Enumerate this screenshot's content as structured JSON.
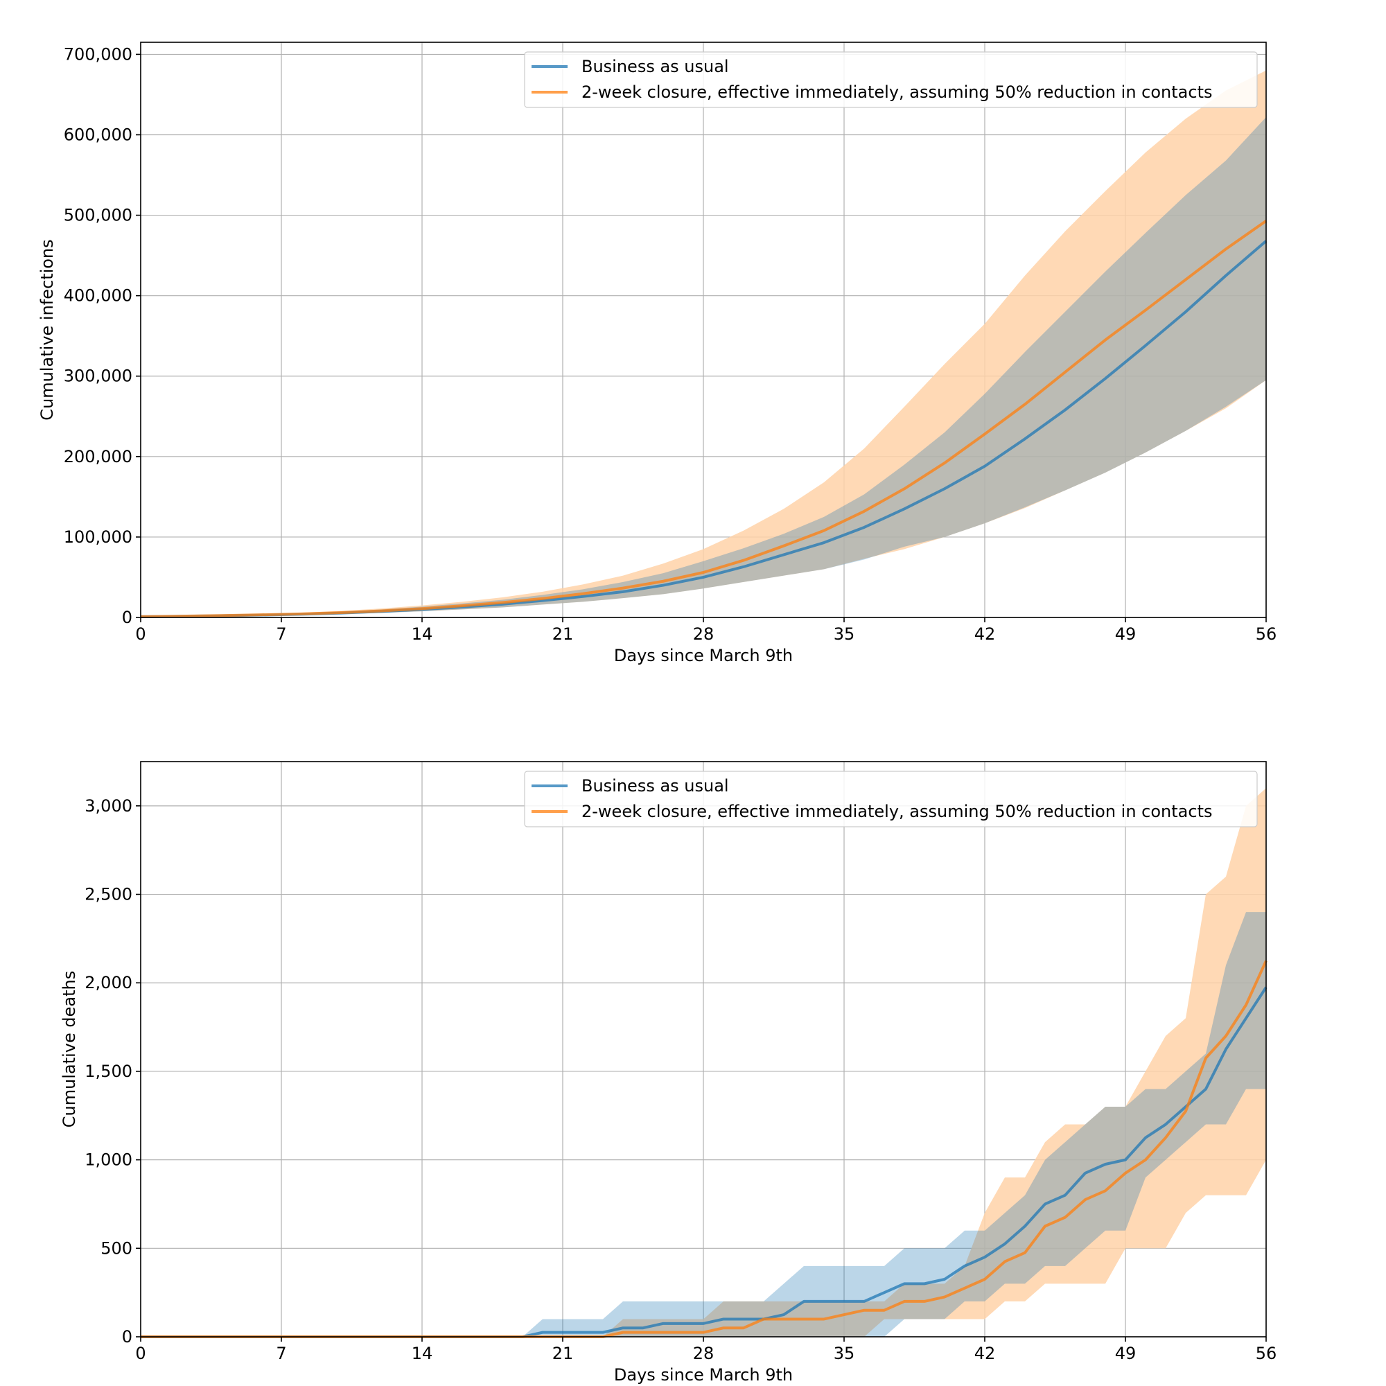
{
  "colors": {
    "bau": "#1f77b4",
    "closure": "#ff7f0e",
    "bau_band": "#9ecae1",
    "closure_band": "#ffd2a8",
    "grid": "#b0b0b0"
  },
  "legend": {
    "bau_label": "Business as usual",
    "closure_label": "2-week closure, effective immediately, assuming 50% reduction in contacts"
  },
  "chart_data": [
    {
      "type": "line",
      "xlabel": "Days since March 9th",
      "ylabel": "Cumulative infections",
      "xlim": [
        0,
        56
      ],
      "ylim": [
        0,
        715000
      ],
      "xticks": [
        0,
        7,
        14,
        21,
        28,
        35,
        42,
        49,
        56
      ],
      "xtick_labels": [
        "0",
        "7",
        "14",
        "21",
        "28",
        "35",
        "42",
        "49",
        "56"
      ],
      "yticks": [
        0,
        100000,
        200000,
        300000,
        400000,
        500000,
        600000,
        700000
      ],
      "ytick_labels": [
        "0",
        "100,000",
        "200,000",
        "300,000",
        "400,000",
        "500,000",
        "600,000",
        "700,000"
      ],
      "grid": true,
      "legend_position": "top-right",
      "series": [
        {
          "name": "Business as usual",
          "x": [
            0,
            2,
            4,
            6,
            8,
            10,
            12,
            14,
            16,
            18,
            20,
            22,
            24,
            26,
            28,
            30,
            32,
            34,
            36,
            38,
            40,
            42,
            44,
            46,
            48,
            50,
            52,
            54,
            56
          ],
          "values": [
            1000,
            1500,
            2200,
            3000,
            4000,
            5500,
            7500,
            10000,
            13000,
            16500,
            21000,
            26000,
            32000,
            40000,
            50000,
            63000,
            78000,
            93000,
            112000,
            135000,
            160000,
            188000,
            222000,
            258000,
            297000,
            338000,
            380000,
            425000,
            468000
          ],
          "lower": [
            800,
            1200,
            1700,
            2300,
            3100,
            4200,
            5700,
            7600,
            10000,
            12500,
            16000,
            19500,
            24000,
            29000,
            36000,
            44000,
            52000,
            60000,
            72000,
            88000,
            100000,
            117000,
            137000,
            158000,
            180000,
            205000,
            232000,
            262000,
            295000
          ],
          "upper": [
            1300,
            1900,
            2800,
            3900,
            5300,
            7300,
            10000,
            13500,
            17500,
            22000,
            28000,
            35000,
            44000,
            55000,
            70000,
            86000,
            104000,
            125000,
            153000,
            190000,
            230000,
            278000,
            330000,
            380000,
            430000,
            478000,
            525000,
            568000,
            622000
          ]
        },
        {
          "name": "2-week closure, effective immediately, assuming 50% reduction in contacts",
          "x": [
            0,
            2,
            4,
            6,
            8,
            10,
            12,
            14,
            16,
            18,
            20,
            22,
            24,
            26,
            28,
            30,
            32,
            34,
            36,
            38,
            40,
            42,
            44,
            46,
            48,
            50,
            52,
            54,
            56
          ],
          "values": [
            1000,
            1600,
            2400,
            3300,
            4400,
            6000,
            8200,
            11000,
            14500,
            18500,
            23500,
            29500,
            36500,
            45000,
            56000,
            71000,
            89000,
            108000,
            132000,
            160000,
            192000,
            228000,
            265000,
            305000,
            345000,
            382000,
            420000,
            458000,
            493000
          ],
          "lower": [
            800,
            1200,
            1700,
            2300,
            3100,
            4200,
            5700,
            7600,
            10000,
            12500,
            16000,
            19500,
            24000,
            29000,
            36000,
            44000,
            52000,
            60000,
            73000,
            85000,
            100000,
            117000,
            136000,
            158000,
            180000,
            205000,
            232000,
            260000,
            295000
          ],
          "upper": [
            1500,
            2200,
            3200,
            4400,
            6000,
            8200,
            11200,
            15000,
            19500,
            25000,
            32000,
            41000,
            52000,
            67000,
            85000,
            108000,
            135000,
            168000,
            210000,
            262000,
            315000,
            365000,
            425000,
            480000,
            530000,
            578000,
            620000,
            655000,
            680000
          ]
        }
      ]
    },
    {
      "type": "line",
      "xlabel": "Days since March 9th",
      "ylabel": "Cumulative deaths",
      "xlim": [
        0,
        56
      ],
      "ylim": [
        0,
        3250
      ],
      "xticks": [
        0,
        7,
        14,
        21,
        28,
        35,
        42,
        49,
        56
      ],
      "xtick_labels": [
        "0",
        "7",
        "14",
        "21",
        "28",
        "35",
        "42",
        "49",
        "56"
      ],
      "yticks": [
        0,
        500,
        1000,
        1500,
        2000,
        2500,
        3000
      ],
      "ytick_labels": [
        "0",
        "500",
        "1,000",
        "1,500",
        "2,000",
        "2,500",
        "3,000"
      ],
      "grid": true,
      "legend_position": "top-right",
      "series": [
        {
          "name": "Business as usual",
          "x": [
            0,
            1,
            2,
            3,
            4,
            5,
            6,
            7,
            8,
            9,
            10,
            11,
            12,
            13,
            14,
            15,
            16,
            17,
            18,
            19,
            20,
            21,
            22,
            23,
            24,
            25,
            26,
            27,
            28,
            29,
            30,
            31,
            32,
            33,
            34,
            35,
            36,
            37,
            38,
            39,
            40,
            41,
            42,
            43,
            44,
            45,
            46,
            47,
            48,
            49,
            50,
            51,
            52,
            53,
            54,
            55,
            56
          ],
          "values": [
            0,
            0,
            0,
            0,
            0,
            0,
            0,
            0,
            0,
            0,
            0,
            0,
            0,
            0,
            0,
            0,
            0,
            0,
            0,
            0,
            25,
            25,
            25,
            25,
            50,
            50,
            75,
            75,
            75,
            100,
            100,
            100,
            125,
            200,
            200,
            200,
            200,
            250,
            300,
            300,
            325,
            400,
            450,
            525,
            625,
            750,
            800,
            925,
            975,
            1000,
            1125,
            1200,
            1300,
            1400,
            1625,
            1800,
            1975
          ],
          "lower": [
            0,
            0,
            0,
            0,
            0,
            0,
            0,
            0,
            0,
            0,
            0,
            0,
            0,
            0,
            0,
            0,
            0,
            0,
            0,
            0,
            0,
            0,
            0,
            0,
            0,
            0,
            0,
            0,
            0,
            0,
            0,
            0,
            0,
            0,
            0,
            0,
            0,
            0,
            100,
            100,
            100,
            200,
            200,
            300,
            300,
            400,
            400,
            500,
            600,
            600,
            900,
            1000,
            1100,
            1200,
            1200,
            1400,
            1400
          ],
          "upper": [
            0,
            0,
            0,
            0,
            0,
            0,
            0,
            0,
            0,
            0,
            0,
            0,
            0,
            0,
            0,
            0,
            0,
            0,
            0,
            0,
            100,
            100,
            100,
            100,
            200,
            200,
            200,
            200,
            200,
            200,
            200,
            200,
            300,
            400,
            400,
            400,
            400,
            400,
            500,
            500,
            500,
            600,
            600,
            700,
            800,
            1000,
            1100,
            1200,
            1300,
            1300,
            1400,
            1400,
            1500,
            1600,
            2100,
            2400,
            2400
          ]
        },
        {
          "name": "2-week closure, effective immediately, assuming 50% reduction in contacts",
          "x": [
            0,
            1,
            2,
            3,
            4,
            5,
            6,
            7,
            8,
            9,
            10,
            11,
            12,
            13,
            14,
            15,
            16,
            17,
            18,
            19,
            20,
            21,
            22,
            23,
            24,
            25,
            26,
            27,
            28,
            29,
            30,
            31,
            32,
            33,
            34,
            35,
            36,
            37,
            38,
            39,
            40,
            41,
            42,
            43,
            44,
            45,
            46,
            47,
            48,
            49,
            50,
            51,
            52,
            53,
            54,
            55,
            56
          ],
          "values": [
            0,
            0,
            0,
            0,
            0,
            0,
            0,
            0,
            0,
            0,
            0,
            0,
            0,
            0,
            0,
            0,
            0,
            0,
            0,
            0,
            0,
            0,
            0,
            0,
            25,
            25,
            25,
            25,
            25,
            50,
            50,
            100,
            100,
            100,
            100,
            125,
            150,
            150,
            200,
            200,
            225,
            275,
            325,
            425,
            475,
            625,
            675,
            775,
            825,
            925,
            1000,
            1125,
            1275,
            1575,
            1700,
            1875,
            2125
          ],
          "lower": [
            0,
            0,
            0,
            0,
            0,
            0,
            0,
            0,
            0,
            0,
            0,
            0,
            0,
            0,
            0,
            0,
            0,
            0,
            0,
            0,
            0,
            0,
            0,
            0,
            0,
            0,
            0,
            0,
            0,
            0,
            0,
            0,
            0,
            0,
            0,
            0,
            0,
            100,
            100,
            100,
            100,
            100,
            100,
            200,
            200,
            300,
            300,
            300,
            300,
            500,
            500,
            500,
            700,
            800,
            800,
            800,
            1000
          ],
          "upper": [
            0,
            0,
            0,
            0,
            0,
            0,
            0,
            0,
            0,
            0,
            0,
            0,
            0,
            0,
            0,
            0,
            0,
            0,
            0,
            0,
            0,
            0,
            0,
            0,
            100,
            100,
            100,
            100,
            100,
            200,
            200,
            200,
            200,
            200,
            200,
            200,
            200,
            200,
            300,
            300,
            300,
            400,
            700,
            900,
            900,
            1100,
            1200,
            1200,
            1300,
            1300,
            1500,
            1700,
            1800,
            2500,
            2600,
            3000,
            3100
          ]
        }
      ]
    }
  ]
}
